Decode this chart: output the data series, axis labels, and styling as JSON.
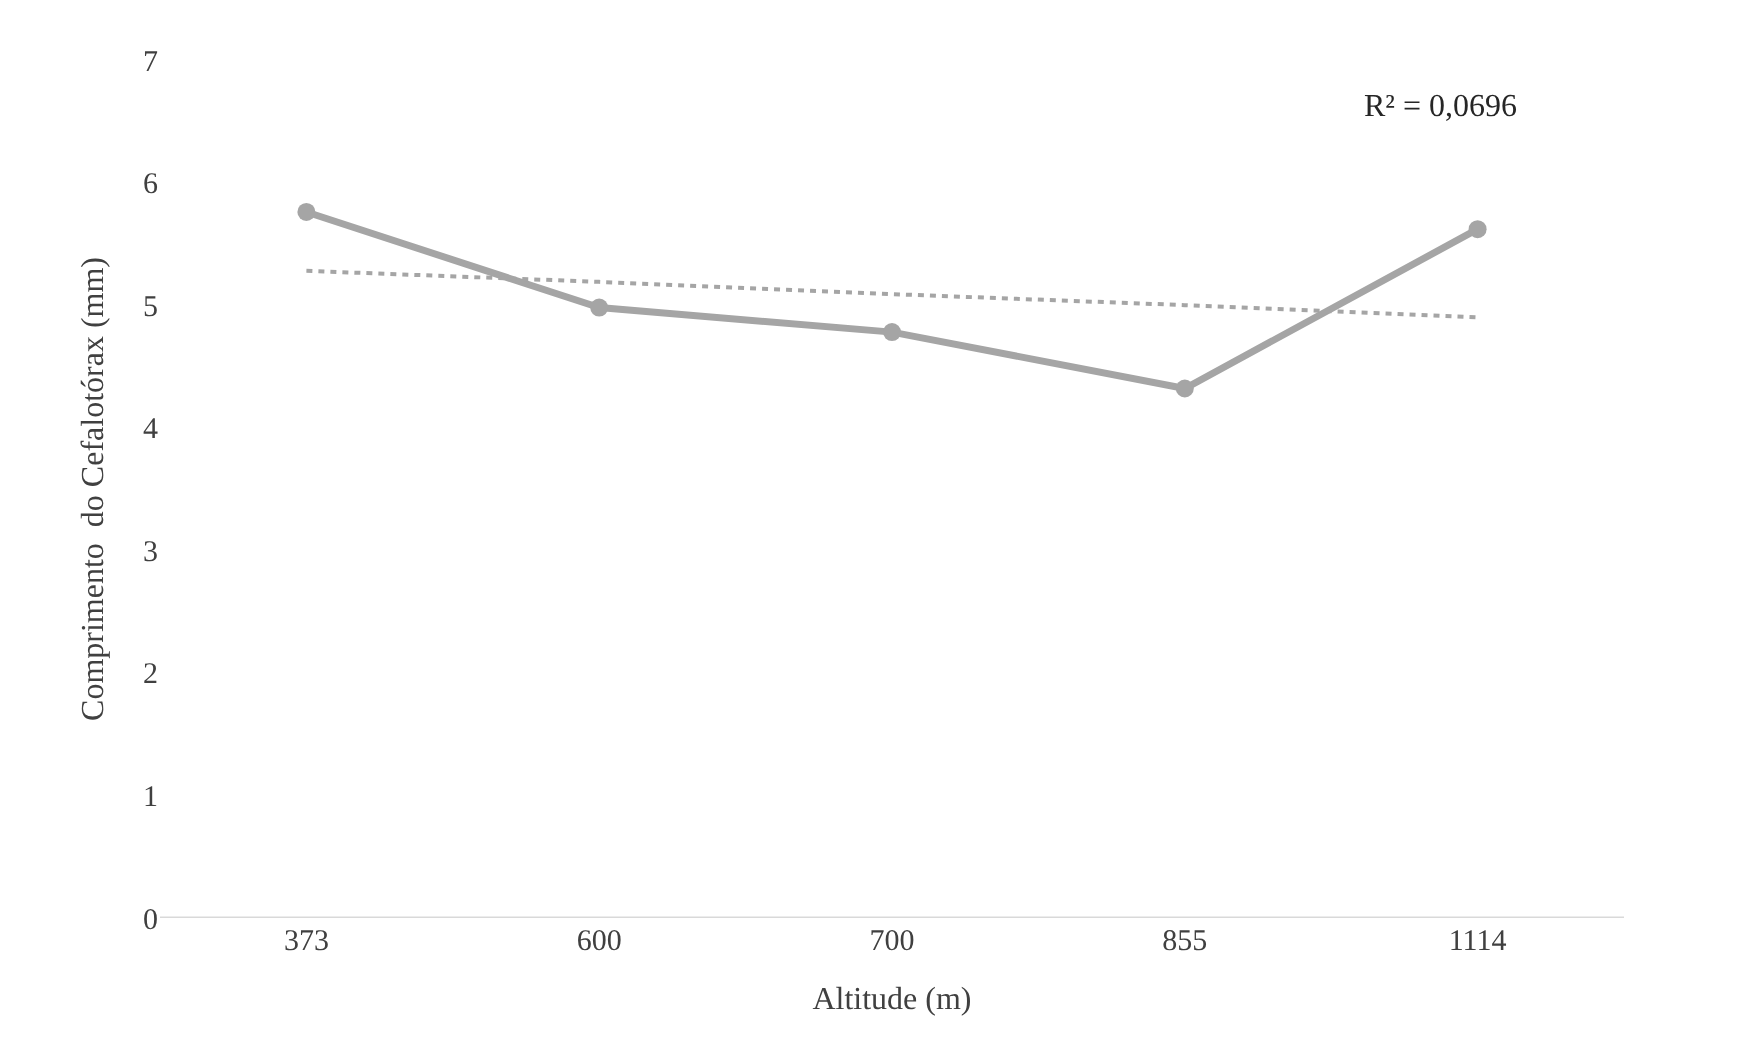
{
  "chart_data": {
    "type": "line",
    "xlabel": "Altitude (m)",
    "ylabel": "Comprimento  do Cefalotórax (mm)",
    "categories": [
      "373",
      "600",
      "700",
      "855",
      "1114"
    ],
    "series": [
      {
        "color": "#a5a5a5",
        "values": [
          5.76,
          4.98,
          4.78,
          4.32,
          5.62
        ],
        "marker": "circle",
        "line_style": "solid"
      },
      {
        "type": "line",
        "color": "#a5a5a5",
        "values": [
          5.28,
          5.19,
          5.09,
          5.0,
          4.9
        ],
        "marker": "none",
        "line_style": "dotted"
      }
    ],
    "ylim": [
      0,
      7
    ],
    "yticks": [
      0,
      1,
      2,
      3,
      4,
      5,
      6,
      7
    ],
    "annotations": [
      "R² = 0,0696"
    ]
  }
}
